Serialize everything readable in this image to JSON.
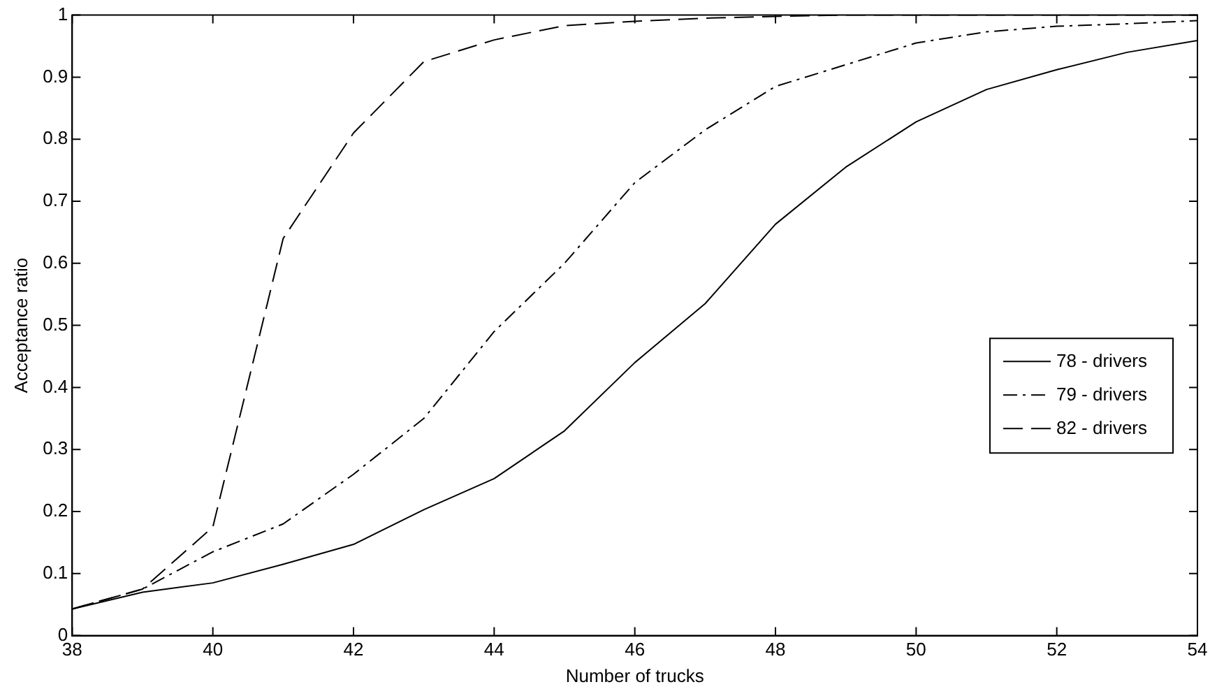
{
  "chart_data": {
    "type": "line",
    "xlabel": "Number of trucks",
    "ylabel": "Acceptance ratio",
    "x": [
      38,
      39,
      40,
      41,
      42,
      43,
      44,
      45,
      46,
      47,
      48,
      49,
      50,
      51,
      52,
      53,
      54
    ],
    "series": [
      {
        "name": "78 - drivers",
        "color": "#000000",
        "line_style": "solid",
        "values": [
          0.043,
          0.07,
          0.085,
          0.115,
          0.147,
          0.203,
          0.253,
          0.33,
          0.44,
          0.535,
          0.663,
          0.755,
          0.828,
          0.88,
          0.912,
          0.94,
          0.959
        ]
      },
      {
        "name": "79 - drivers",
        "color": "#000000",
        "line_style": "dashed",
        "values": [
          0.043,
          0.075,
          0.135,
          0.18,
          0.26,
          0.35,
          0.49,
          0.6,
          0.73,
          0.815,
          0.885,
          0.92,
          0.955,
          0.973,
          0.982,
          0.986,
          0.991
        ]
      },
      {
        "name": "82 - drivers",
        "color": "#000000",
        "line_style": "dashed",
        "values": [
          0.043,
          0.075,
          0.175,
          0.64,
          0.81,
          0.925,
          0.96,
          0.983,
          0.99,
          0.995,
          0.998,
          1,
          1,
          1,
          1,
          1,
          1
        ]
      }
    ],
    "xlim": [
      38,
      54
    ],
    "xticks": [
      38,
      40,
      42,
      44,
      46,
      48,
      50,
      52,
      54
    ],
    "ylim": [
      0,
      1
    ],
    "yticks": [
      0,
      0.1,
      0.2,
      0.3,
      0.4,
      0.5,
      0.6,
      0.7,
      0.8,
      0.9,
      1
    ],
    "grid": false,
    "legend": "right",
    "marker": "none"
  }
}
